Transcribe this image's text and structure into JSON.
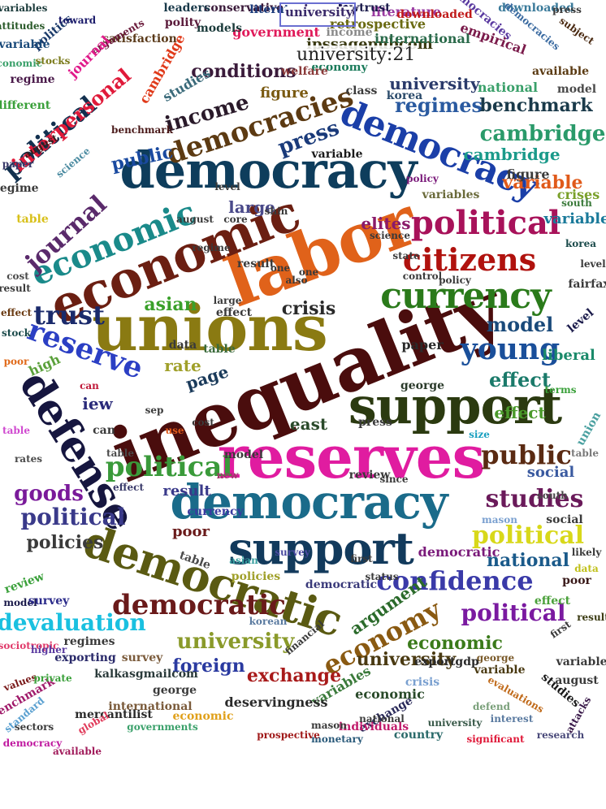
{
  "tooltip": {
    "text": "university:21"
  },
  "hovered_word": "university",
  "words": [
    {
      "t": "inequality",
      "c": "#4a0d0d"
    },
    {
      "t": "unions",
      "c": "#8a7a12"
    },
    {
      "t": "labor",
      "c": "#e0621a"
    },
    {
      "t": "reserves",
      "c": "#e01ca0"
    },
    {
      "t": "democracy",
      "c": "#0e3d5c"
    },
    {
      "t": "economic",
      "c": "#6b1f12"
    },
    {
      "t": "support",
      "c": "#2b3a10"
    },
    {
      "t": "democracy",
      "c": "#1a6b8a"
    },
    {
      "t": "support",
      "c": "#123a5c"
    },
    {
      "t": "democratic",
      "c": "#5a5a12"
    },
    {
      "t": "democracy",
      "c": "#1b3fa8"
    },
    {
      "t": "defense",
      "c": "#16163f"
    },
    {
      "t": "currency",
      "c": "#2a7a1a"
    },
    {
      "t": "economic",
      "c": "#1a8a8a"
    },
    {
      "t": "political",
      "c": "#a8125a"
    },
    {
      "t": "political",
      "c": "#3a9a3a"
    },
    {
      "t": "citizens",
      "c": "#b0120e"
    },
    {
      "t": "reserve",
      "c": "#2b3fc4"
    },
    {
      "t": "democracies",
      "c": "#5c3a12"
    },
    {
      "t": "young",
      "c": "#1a4f9a"
    },
    {
      "t": "journal",
      "c": "#5a2a6b"
    },
    {
      "t": "trust",
      "c": "#1a2a6b"
    },
    {
      "t": "political",
      "c": "#12304f"
    },
    {
      "t": "democratic",
      "c": "#6a1a1a"
    },
    {
      "t": "studies",
      "c": "#6a1a5a"
    },
    {
      "t": "public",
      "c": "#5a2a12"
    },
    {
      "t": "political",
      "c": "#d8d81a"
    },
    {
      "t": "confidence",
      "c": "#3a3aa8"
    },
    {
      "t": "economy",
      "c": "#8a5a12"
    },
    {
      "t": "devaluation",
      "c": "#1ac0e0"
    },
    {
      "t": "university",
      "c": "#8a9a2a"
    },
    {
      "t": "political",
      "c": "#7a1aa0"
    },
    {
      "t": "cambridge",
      "c": "#2a9a6a"
    },
    {
      "t": "press",
      "c": "#1a3a7a"
    },
    {
      "t": "income",
      "c": "#2a1a2a"
    },
    {
      "t": "interpersonal",
      "c": "#e01a3a"
    },
    {
      "t": "regimes",
      "c": "#2a5aa0"
    },
    {
      "t": "benchmark",
      "c": "#1a3a4a"
    },
    {
      "t": "political",
      "c": "#3a3a8a"
    },
    {
      "t": "goods",
      "c": "#7a1a9a"
    },
    {
      "t": "exchange",
      "c": "#a81a1a"
    },
    {
      "t": "foreign",
      "c": "#2a3aa0"
    },
    {
      "t": "national",
      "c": "#1a5a8a"
    },
    {
      "t": "economic",
      "c": "#3a7a1a"
    },
    {
      "t": "university",
      "c": "#4a3a12"
    },
    {
      "t": "policies",
      "c": "#3a3a3a"
    },
    {
      "t": "crisis",
      "c": "#2a2a2a"
    },
    {
      "t": "model",
      "c": "#1a4a7a"
    },
    {
      "t": "effect",
      "c": "#1a7a6a"
    },
    {
      "t": "asian",
      "c": "#3aa02a"
    },
    {
      "t": "public",
      "c": "#1a4aa0"
    },
    {
      "t": "conditions",
      "c": "#3a1a3a"
    },
    {
      "t": "university",
      "c": "#2a3a6a"
    },
    {
      "t": "variable",
      "c": "#e05a1a"
    },
    {
      "t": "cambridge",
      "c": "#1a9a8a"
    },
    {
      "t": "large",
      "c": "#4a4a8a"
    },
    {
      "t": "elites",
      "c": "#8a1a6a"
    },
    {
      "t": "east",
      "c": "#2a4a2a"
    },
    {
      "t": "page",
      "c": "#1a3a5a"
    },
    {
      "t": "rate",
      "c": "#a0a02a"
    },
    {
      "t": "iew",
      "c": "#2a2a7a"
    },
    {
      "t": "result",
      "c": "#3a3a8a"
    },
    {
      "t": "poor",
      "c": "#6a1a1a"
    },
    {
      "t": "effect",
      "c": "#4a9a2a"
    },
    {
      "t": "argument",
      "c": "#2a6a2a"
    },
    {
      "t": "social",
      "c": "#3a5aa0"
    },
    {
      "t": "liberal",
      "c": "#1a8a6a"
    },
    {
      "t": "variable",
      "c": "#1a7a9a"
    },
    {
      "t": "figure",
      "c": "#7a5a12"
    },
    {
      "t": "crises",
      "c": "#7aa02a"
    },
    {
      "t": "figure",
      "c": "#3a3a3a"
    },
    {
      "t": "ipssagepubcom",
      "c": "#3a3a12"
    },
    {
      "t": "government",
      "c": "#e01a5a"
    },
    {
      "t": "income",
      "c": "#8a8a8a"
    },
    {
      "t": "retrospective",
      "c": "#6a6a12"
    },
    {
      "t": "literature",
      "c": "#9a3aa0"
    },
    {
      "t": "university",
      "c": "#3a2a6a"
    },
    {
      "t": "downloaded",
      "c": "#c01a1a"
    },
    {
      "t": "democracies",
      "c": "#5a3aa0"
    },
    {
      "t": "downloaded",
      "c": "#3a7a9a"
    },
    {
      "t": "international",
      "c": "#2a6a4a"
    },
    {
      "t": "empirical",
      "c": "#7a1a4a"
    },
    {
      "t": "available",
      "c": "#5a3a12"
    },
    {
      "t": "national",
      "c": "#3aa06a"
    },
    {
      "t": "model",
      "c": "#4a4a4a"
    },
    {
      "t": "economy",
      "c": "#1a7a5a"
    },
    {
      "t": "korea",
      "c": "#2a4a6a"
    },
    {
      "t": "studies",
      "c": "#3a6a7a"
    },
    {
      "t": "welfare",
      "c": "#8a3a3a"
    },
    {
      "t": "class",
      "c": "#3a3a3a"
    },
    {
      "t": "variable",
      "c": "#1a1a1a"
    },
    {
      "t": "variables",
      "c": "#6a6a3a"
    },
    {
      "t": "models",
      "c": "#1a3a3a"
    },
    {
      "t": "polity",
      "c": "#5a1a3a"
    },
    {
      "t": "satisfaction",
      "c": "#5a3a1a"
    },
    {
      "t": "conservative",
      "c": "#3a1a3a"
    },
    {
      "t": "leaders",
      "c": "#1a3a4a"
    },
    {
      "t": "literature",
      "c": "#1a3a7a"
    },
    {
      "t": "lowtrust",
      "c": "#1a1a4a"
    },
    {
      "t": "democracies",
      "c": "#3a6aa0"
    },
    {
      "t": "press",
      "c": "#3a3a3a"
    },
    {
      "t": "subject",
      "c": "#4a2a12"
    },
    {
      "t": "arguments",
      "c": "#6a1a3a"
    },
    {
      "t": "politics",
      "c": "#1a3a6a"
    },
    {
      "t": "journal",
      "c": "#e01a8a"
    },
    {
      "t": "cambridge",
      "c": "#e03a1a"
    },
    {
      "t": "economic",
      "c": "#3aa06a"
    },
    {
      "t": "stocks",
      "c": "#7a7a1a"
    },
    {
      "t": "regime",
      "c": "#4a1a4a"
    },
    {
      "t": "variable",
      "c": "#1a4a7a"
    },
    {
      "t": "different",
      "c": "#3aa03a"
    },
    {
      "t": "variables",
      "c": "#1a3a3a"
    },
    {
      "t": "attitudes",
      "c": "#2a5a2a"
    },
    {
      "t": "toward",
      "c": "#1a1a6a"
    },
    {
      "t": "benchmark",
      "c": "#4a1a1a"
    },
    {
      "t": "august",
      "c": "#3a1a1a"
    },
    {
      "t": "science",
      "c": "#4a8aa0"
    },
    {
      "t": "paper",
      "c": "#3a3a6a"
    },
    {
      "t": "regime",
      "c": "#3a3a3a"
    },
    {
      "t": "table",
      "c": "#d8c01a"
    },
    {
      "t": "policy",
      "c": "#7a1a7a"
    },
    {
      "t": "cost",
      "c": "#4a4a4a"
    },
    {
      "t": "level",
      "c": "#3a3a3a"
    },
    {
      "t": "korea",
      "c": "#1a4a4a"
    },
    {
      "t": "south",
      "c": "#3a7a3a"
    },
    {
      "t": "fairfax",
      "c": "#3a3a3a"
    },
    {
      "t": "level",
      "c": "#1a1a4a"
    },
    {
      "t": "terms",
      "c": "#3aa03a"
    },
    {
      "t": "effect",
      "c": "#6a3a12"
    },
    {
      "t": "stock",
      "c": "#1a4a4a"
    },
    {
      "t": "high",
      "c": "#5aa03a"
    },
    {
      "t": "poor",
      "c": "#e06a1a"
    },
    {
      "t": "union",
      "c": "#4aa0a0"
    },
    {
      "t": "table",
      "c": "#7a7a7a"
    },
    {
      "t": "size",
      "c": "#1aa0c0"
    },
    {
      "t": "press",
      "c": "#3a3a3a"
    },
    {
      "t": "paper",
      "c": "#2a2a2a"
    },
    {
      "t": "george",
      "c": "#2a3a2a"
    },
    {
      "t": "can",
      "c": "#c01a3a"
    },
    {
      "t": "can",
      "c": "#3a3a3a"
    },
    {
      "t": "table",
      "c": "#4a4a4a"
    },
    {
      "t": "table",
      "c": "#d04ad0"
    },
    {
      "t": "rates",
      "c": "#4a4a4a"
    },
    {
      "t": "south",
      "c": "#4a4a4a"
    },
    {
      "t": "effect",
      "c": "#3a3a6a"
    },
    {
      "t": "social",
      "c": "#3a3a3a"
    },
    {
      "t": "mason",
      "c": "#7aa0d0"
    },
    {
      "t": "review",
      "c": "#3aa03a"
    },
    {
      "t": "model",
      "c": "#1a1a4a"
    },
    {
      "t": "survey",
      "c": "#2a2a8a"
    },
    {
      "t": "table",
      "c": "#4a4a4a"
    },
    {
      "t": "currency",
      "c": "#3a3aa0"
    },
    {
      "t": "democratic",
      "c": "#7a1a7a"
    },
    {
      "t": "poor",
      "c": "#3a1a1a"
    },
    {
      "t": "effect",
      "c": "#4aa03a"
    },
    {
      "t": "result",
      "c": "#3a3a12"
    },
    {
      "t": "likely",
      "c": "#3a3a3a"
    },
    {
      "t": "data",
      "c": "#c0c01a"
    },
    {
      "t": "first",
      "c": "#3a3a3a"
    },
    {
      "t": "variables",
      "c": "#3a3a3a"
    },
    {
      "t": "august",
      "c": "#3a3a3a"
    },
    {
      "t": "studies",
      "c": "#1a1a1a"
    },
    {
      "t": "attacks",
      "c": "#3a1a4a"
    },
    {
      "t": "research",
      "c": "#4a4a7a"
    },
    {
      "t": "interest",
      "c": "#5a7aa0"
    },
    {
      "t": "significant",
      "c": "#e01a3a"
    },
    {
      "t": "country",
      "c": "#2a6a6a"
    },
    {
      "t": "defend",
      "c": "#7aa07a"
    },
    {
      "t": "evaluations",
      "c": "#c06a1a"
    },
    {
      "t": "variable",
      "c": "#4a3a12"
    },
    {
      "t": "george",
      "c": "#7a5a2a"
    },
    {
      "t": "exportgdp",
      "c": "#2a2a2a"
    },
    {
      "t": "crisis",
      "c": "#7aa0d0"
    },
    {
      "t": "economic",
      "c": "#2a4a2a"
    },
    {
      "t": "exchange",
      "c": "#2a2a5a"
    },
    {
      "t": "university",
      "c": "#3a5a4a"
    },
    {
      "t": "monetary",
      "c": "#2a5a7a"
    },
    {
      "t": "individuals",
      "c": "#c01a6a"
    },
    {
      "t": "mason",
      "c": "#3a3a3a"
    },
    {
      "t": "national",
      "c": "#3a3a3a"
    },
    {
      "t": "variables",
      "c": "#3a7a3a"
    },
    {
      "t": "deservingness",
      "c": "#2a2a2a"
    },
    {
      "t": "george",
      "c": "#3a3a3a"
    },
    {
      "t": "economic",
      "c": "#e0a01a"
    },
    {
      "t": "international",
      "c": "#7a5a3a"
    },
    {
      "t": "governments",
      "c": "#3aa06a"
    },
    {
      "t": "prospective",
      "c": "#a01a1a"
    },
    {
      "t": "mercantilist",
      "c": "#2a2a2a"
    },
    {
      "t": "kalkasgmailcom",
      "c": "#2a3a3a"
    },
    {
      "t": "survey",
      "c": "#7a5a3a"
    },
    {
      "t": "exporting",
      "c": "#2a2a6a"
    },
    {
      "t": "regimes",
      "c": "#3a3a3a"
    },
    {
      "t": "financial",
      "c": "#3a3a3a"
    },
    {
      "t": "available",
      "c": "#a01a5a"
    },
    {
      "t": "democracy",
      "c": "#c01aa0"
    },
    {
      "t": "global",
      "c": "#e03a5a"
    },
    {
      "t": "sectors",
      "c": "#3a3a3a"
    },
    {
      "t": "standard",
      "c": "#5aa0d0"
    },
    {
      "t": "benchmark",
      "c": "#a01a6a"
    },
    {
      "t": "values",
      "c": "#7a1a1a"
    },
    {
      "t": "private",
      "c": "#3aa03a"
    },
    {
      "t": "sociotropic",
      "c": "#e03a6a"
    },
    {
      "t": "korean",
      "c": "#5a7aa0"
    },
    {
      "t": "higher",
      "c": "#5a3aa0"
    },
    {
      "t": "policies",
      "c": "#a0a02a"
    },
    {
      "t": "asian",
      "c": "#3aa0a0"
    },
    {
      "t": "survey",
      "c": "#4a4aa0"
    },
    {
      "t": "first",
      "c": "#3a3a3a"
    },
    {
      "t": "democratic",
      "c": "#3a3a7a"
    },
    {
      "t": "status",
      "c": "#3a3a3a"
    },
    {
      "t": "review",
      "c": "#3a3a3a"
    },
    {
      "t": "since",
      "c": "#3a3a3a"
    },
    {
      "t": "model",
      "c": "#3a3a3a"
    },
    {
      "t": "new",
      "c": "#a03a6a"
    },
    {
      "t": "cost",
      "c": "#3a3a3a"
    },
    {
      "t": "use",
      "c": "#e05a1a"
    },
    {
      "t": "sep",
      "c": "#3a3a3a"
    },
    {
      "t": "data",
      "c": "#3a3a3a"
    },
    {
      "t": "table",
      "c": "#3a6a3a"
    },
    {
      "t": "large",
      "c": "#3a3a3a"
    },
    {
      "t": "effect",
      "c": "#3a3a3a"
    },
    {
      "t": "also",
      "c": "#3a3a3a"
    },
    {
      "t": "one",
      "c": "#3a3a3a"
    },
    {
      "t": "result",
      "c": "#3a3a3a"
    },
    {
      "t": "one",
      "c": "#3a3a3a"
    },
    {
      "t": "shin",
      "c": "#3a3a3a"
    },
    {
      "t": "level",
      "c": "#3a3a3a"
    },
    {
      "t": "core",
      "c": "#3a3a3a"
    },
    {
      "t": "august",
      "c": "#3a3a3a"
    },
    {
      "t": "regime",
      "c": "#3a3a3a"
    },
    {
      "t": "science",
      "c": "#3a3a3a"
    },
    {
      "t": "state",
      "c": "#3a3a3a"
    },
    {
      "t": "control",
      "c": "#3a3a3a"
    },
    {
      "t": "policy",
      "c": "#3a3a3a"
    },
    {
      "t": "result",
      "c": "#3a3a3a"
    },
    {
      "t": "online",
      "c": "#3a3a3a"
    },
    {
      "t": "two",
      "c": "#3a3a3a"
    },
    {
      "t": "high",
      "c": "#3a3a3a"
    }
  ]
}
